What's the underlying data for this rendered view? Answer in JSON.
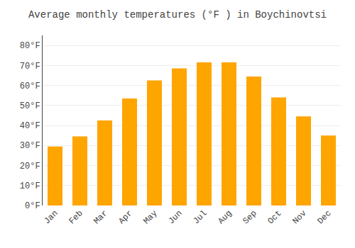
{
  "chart_data": {
    "type": "bar",
    "title": "Average monthly temperatures (°F ) in Boychinovtsi",
    "categories": [
      "Jan",
      "Feb",
      "Mar",
      "Apr",
      "May",
      "Jun",
      "Jul",
      "Aug",
      "Sep",
      "Oct",
      "Nov",
      "Dec"
    ],
    "values": [
      29.5,
      34.5,
      42.5,
      53.5,
      62.5,
      68.5,
      71.5,
      71.5,
      64.5,
      54.0,
      44.5,
      35.0
    ],
    "color": "#FFA500",
    "ylim": [
      0,
      85
    ],
    "yticks": [
      {
        "value": 0,
        "label": "0°F"
      },
      {
        "value": 10,
        "label": "10°F"
      },
      {
        "value": 20,
        "label": "20°F"
      },
      {
        "value": 30,
        "label": "30°F"
      },
      {
        "value": 40,
        "label": "40°F"
      },
      {
        "value": 50,
        "label": "50°F"
      },
      {
        "value": 60,
        "label": "60°F"
      },
      {
        "value": 70,
        "label": "70°F"
      },
      {
        "value": 80,
        "label": "80°F"
      }
    ],
    "grid": true
  }
}
